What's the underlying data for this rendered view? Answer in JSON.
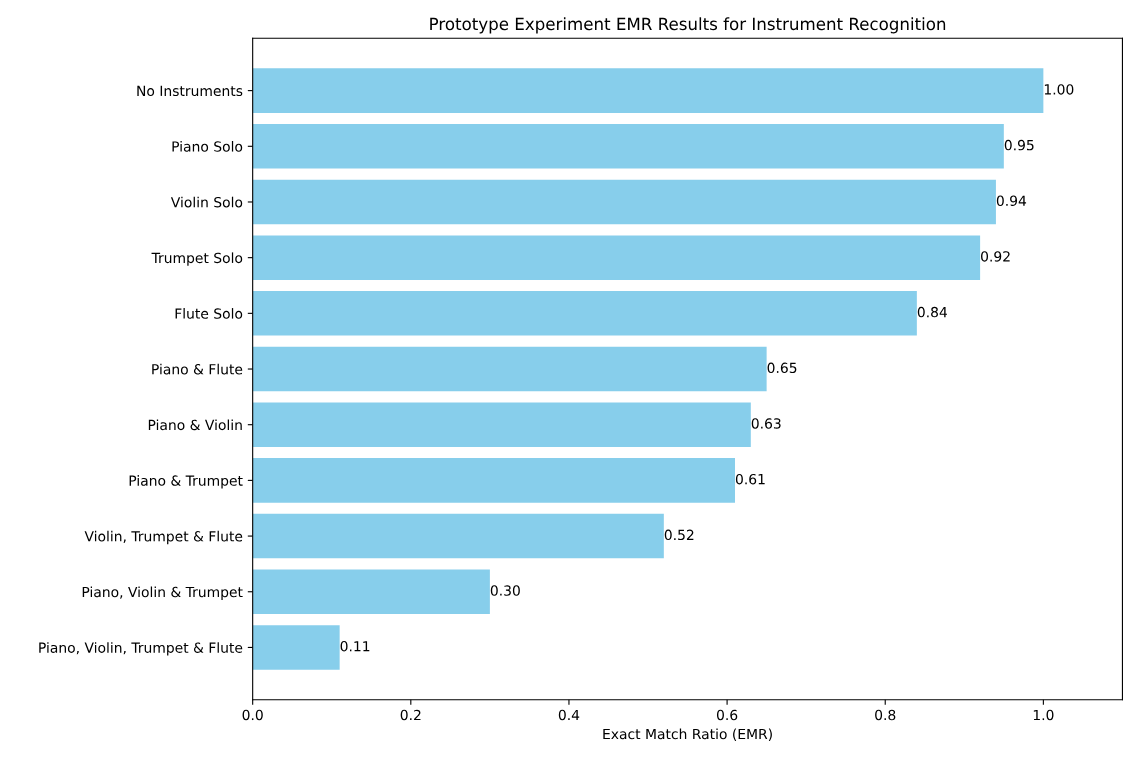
{
  "chart_data": {
    "type": "bar",
    "orientation": "horizontal",
    "title": "Prototype Experiment EMR Results for Instrument Recognition",
    "xlabel": "Exact Match Ratio (EMR)",
    "categories": [
      "No Instruments",
      "Piano Solo",
      "Violin Solo",
      "Trumpet Solo",
      "Flute Solo",
      "Piano & Flute",
      "Piano & Violin",
      "Piano & Trumpet",
      "Violin, Trumpet & Flute",
      "Piano, Violin & Trumpet",
      "Piano, Violin, Trumpet & Flute"
    ],
    "values": [
      1.0,
      0.95,
      0.94,
      0.92,
      0.84,
      0.65,
      0.63,
      0.61,
      0.52,
      0.3,
      0.11
    ],
    "value_labels": [
      "1.00",
      "0.95",
      "0.94",
      "0.92",
      "0.84",
      "0.65",
      "0.63",
      "0.61",
      "0.52",
      "0.30",
      "0.11"
    ],
    "color": "#87ceeb",
    "xlim": [
      0,
      1.1
    ],
    "xticks": [
      {
        "value": 0,
        "label": "0.0"
      },
      {
        "value": 0.2,
        "label": "0.2"
      },
      {
        "value": 0.4,
        "label": "0.4"
      },
      {
        "value": 0.6,
        "label": "0.6"
      },
      {
        "value": 0.8,
        "label": "0.8"
      },
      {
        "value": 1.0,
        "label": "1.0"
      }
    ],
    "grid": false
  }
}
